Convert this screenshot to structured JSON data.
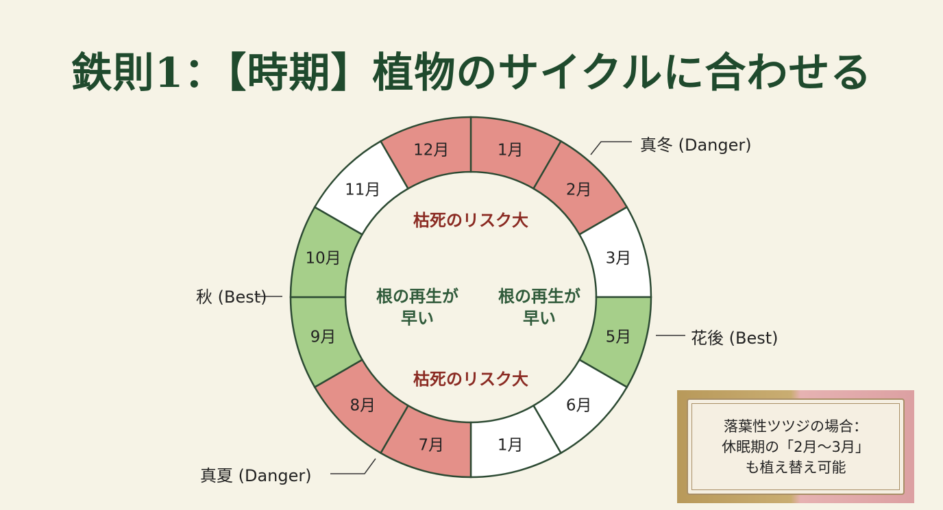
{
  "title": "鉄則1：【時期】植物のサイクルに合わせる",
  "wheel": {
    "segments": [
      {
        "label": "1月",
        "state": "danger"
      },
      {
        "label": "2月",
        "state": "danger"
      },
      {
        "label": "3月",
        "state": "normal"
      },
      {
        "label": "5月",
        "state": "best"
      },
      {
        "label": "6月",
        "state": "normal"
      },
      {
        "label": "1月",
        "state": "normal"
      },
      {
        "label": "7月",
        "state": "danger"
      },
      {
        "label": "8月",
        "state": "danger"
      },
      {
        "label": "9月",
        "state": "best"
      },
      {
        "label": "10月",
        "state": "best"
      },
      {
        "label": "11月",
        "state": "normal"
      },
      {
        "label": "12月",
        "state": "danger"
      }
    ],
    "colors": {
      "danger": "#e49089",
      "best": "#a6cf8a",
      "normal": "#ffffff",
      "ring": "#2c4a33"
    },
    "center": {
      "top_risk": "枯死のリスク大",
      "bottom_risk": "枯死のリスク大",
      "left_regen": [
        "根の再生が",
        "早い"
      ],
      "right_regen": [
        "根の再生が",
        "早い"
      ]
    }
  },
  "annotations": {
    "winter": "真冬 (Danger)",
    "after_bloom": "花後 (Best)",
    "autumn": "秋 (Best)",
    "summer": "真夏 (Danger)"
  },
  "note": [
    "落葉性ツツジの場合：",
    "休眠期の「2月〜3月」",
    "も植え替え可能"
  ]
}
